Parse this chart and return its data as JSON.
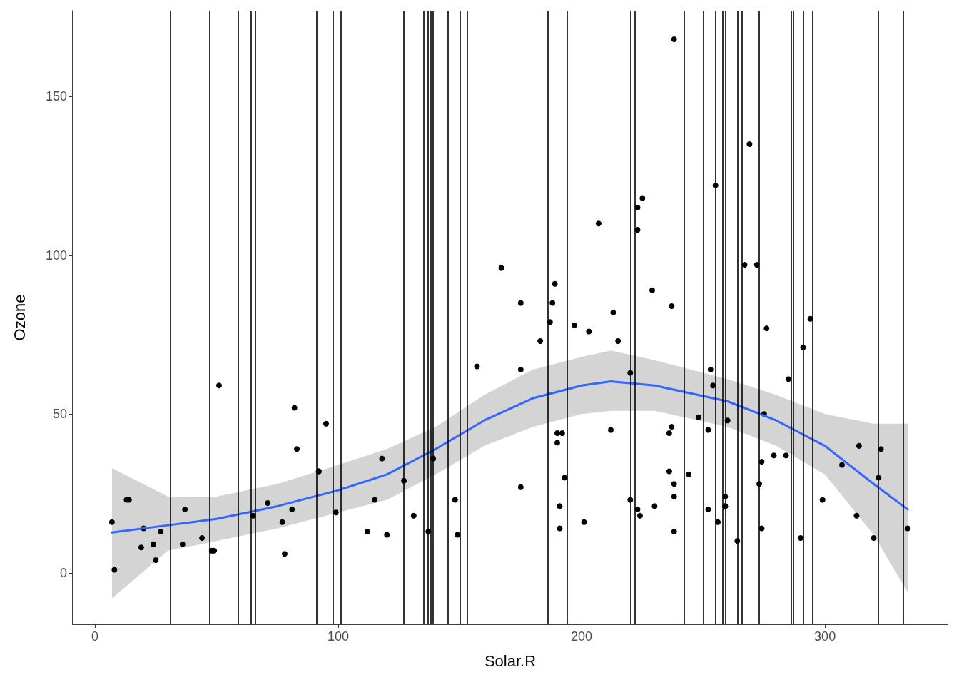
{
  "chart_data": {
    "type": "scatter",
    "xlabel": "Solar.R",
    "ylabel": "Ozone",
    "xlim": [
      -9.1,
      350.4
    ],
    "ylim": [
      -16.2,
      177
    ],
    "xticks": [
      0,
      100,
      200,
      300
    ],
    "yticks": [
      0,
      50,
      100,
      150
    ],
    "grid": false,
    "series": [
      {
        "marker": "circle",
        "color": "#000000",
        "x": [
          190,
          118,
          149,
          313,
          299,
          99,
          19,
          256,
          290,
          274,
          65,
          334,
          307,
          78,
          322,
          44,
          8,
          320,
          25,
          92,
          13,
          252,
          223,
          279,
          127,
          291,
          323,
          148,
          191,
          284,
          37,
          120,
          137,
          269,
          248,
          236,
          175,
          314,
          276,
          267,
          272,
          175,
          264,
          175,
          48,
          260,
          274,
          285,
          187,
          220,
          7,
          294,
          223,
          81,
          82,
          213,
          275,
          253,
          254,
          83,
          24,
          77,
          255,
          229,
          207,
          192,
          273,
          157,
          71,
          51,
          115,
          244,
          190,
          259,
          36,
          212,
          238,
          215,
          203,
          225,
          237,
          188,
          167,
          197,
          183,
          189,
          95,
          92,
          252,
          220,
          230,
          259,
          236,
          259,
          238,
          24,
          112,
          237,
          224,
          27,
          238,
          201,
          238,
          14,
          139,
          49,
          20,
          193,
          191,
          131,
          223
        ],
        "values": [
          41,
          36,
          12,
          18,
          23,
          19,
          8,
          16,
          11,
          14,
          18,
          14,
          34,
          6,
          30,
          11,
          1,
          11,
          4,
          32,
          23,
          45,
          115,
          37,
          29,
          71,
          39,
          23,
          21,
          37,
          20,
          12,
          13,
          135,
          49,
          32,
          64,
          40,
          77,
          97,
          97,
          85,
          10,
          27,
          7,
          48,
          35,
          61,
          79,
          63,
          16,
          80,
          108,
          20,
          52,
          82,
          50,
          64,
          59,
          39,
          9,
          16,
          122,
          89,
          110,
          44,
          28,
          65,
          22,
          59,
          23,
          31,
          44,
          21,
          9,
          45,
          168,
          73,
          76,
          118,
          84,
          85,
          96,
          78,
          73,
          91,
          47,
          32,
          20,
          23,
          21,
          24,
          44,
          21,
          28,
          9,
          13,
          46,
          18,
          13,
          24,
          16,
          13,
          23,
          36,
          7,
          14,
          30,
          14,
          18,
          20
        ]
      },
      {
        "type": "line",
        "marker": "none",
        "color": "#3366ff",
        "x": [
          7,
          30,
          50,
          75,
          100,
          120,
          140,
          160,
          180,
          200,
          212,
          230,
          260,
          280,
          300,
          320,
          334
        ],
        "values": [
          12.7,
          15,
          17,
          21,
          26,
          31,
          39,
          48,
          55,
          59,
          60.3,
          59,
          54,
          48,
          40,
          28,
          20
        ],
        "lower": [
          -8,
          7,
          10,
          14,
          19,
          23,
          31,
          40,
          46,
          50,
          51,
          51,
          46,
          40,
          31,
          12,
          -6
        ],
        "upper": [
          33,
          24,
          24,
          28,
          34,
          39,
          46,
          56,
          64,
          68,
          70,
          67,
          61,
          56,
          50,
          47,
          47
        ]
      }
    ],
    "ref_lines": [
      {
        "axis": "x",
        "value": 31,
        "color": "#000000"
      },
      {
        "axis": "x",
        "value": 47,
        "color": "#000000"
      },
      {
        "axis": "x",
        "value": 59,
        "color": "#000000"
      },
      {
        "axis": "x",
        "value": 64,
        "color": "#000000"
      },
      {
        "axis": "x",
        "value": 66,
        "color": "#000000"
      },
      {
        "axis": "x",
        "value": 91,
        "color": "#000000"
      },
      {
        "axis": "x",
        "value": 98,
        "color": "#000000"
      },
      {
        "axis": "x",
        "value": 101,
        "color": "#000000"
      },
      {
        "axis": "x",
        "value": 127,
        "color": "#000000"
      },
      {
        "axis": "x",
        "value": 135,
        "color": "#000000"
      },
      {
        "axis": "x",
        "value": 137,
        "color": "#000000"
      },
      {
        "axis": "x",
        "value": 138,
        "color": "#000000"
      },
      {
        "axis": "x",
        "value": 139,
        "color": "#000000"
      },
      {
        "axis": "x",
        "value": 145,
        "color": "#000000"
      },
      {
        "axis": "x",
        "value": 150,
        "color": "#000000"
      },
      {
        "axis": "x",
        "value": 153,
        "color": "#000000"
      },
      {
        "axis": "x",
        "value": 186,
        "color": "#000000"
      },
      {
        "axis": "x",
        "value": 194,
        "color": "#000000"
      },
      {
        "axis": "x",
        "value": 220,
        "color": "#000000"
      },
      {
        "axis": "x",
        "value": 222,
        "color": "#000000"
      },
      {
        "axis": "x",
        "value": 242,
        "color": "#000000"
      },
      {
        "axis": "x",
        "value": 250,
        "color": "#000000"
      },
      {
        "axis": "x",
        "value": 255,
        "color": "#000000"
      },
      {
        "axis": "x",
        "value": 258,
        "color": "#000000"
      },
      {
        "axis": "x",
        "value": 259,
        "color": "#000000"
      },
      {
        "axis": "x",
        "value": 264,
        "color": "#000000"
      },
      {
        "axis": "x",
        "value": 266,
        "color": "#000000"
      },
      {
        "axis": "x",
        "value": 273,
        "color": "#000000"
      },
      {
        "axis": "x",
        "value": 286,
        "color": "#000000"
      },
      {
        "axis": "x",
        "value": 287,
        "color": "#000000"
      },
      {
        "axis": "x",
        "value": 291,
        "color": "#000000"
      },
      {
        "axis": "x",
        "value": 295,
        "color": "#000000"
      },
      {
        "axis": "x",
        "value": 322,
        "color": "#000000"
      },
      {
        "axis": "x",
        "value": 332,
        "color": "#000000"
      }
    ]
  }
}
